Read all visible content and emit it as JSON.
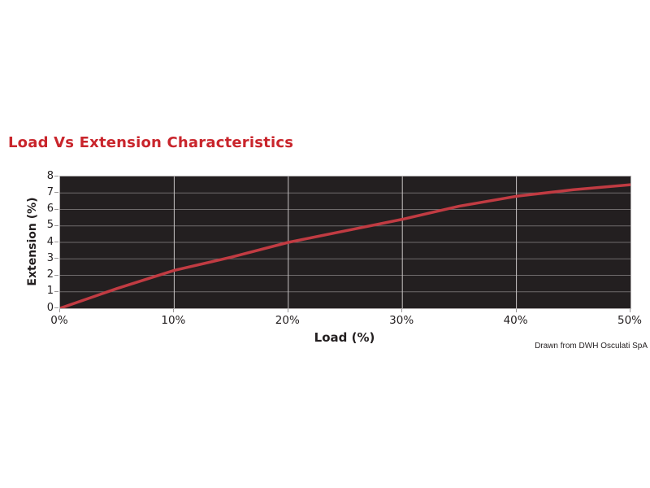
{
  "chart": {
    "title_color": "#c9252c",
    "page_background": "#ffffff"
  },
  "chart_data": {
    "type": "line",
    "title": "Load Vs Extension Characteristics",
    "xlabel": "Load (%)",
    "ylabel": "Extension (%)",
    "x": [
      0,
      5,
      10,
      15,
      20,
      25,
      30,
      35,
      40,
      45,
      50
    ],
    "y": [
      0,
      1.2,
      2.3,
      3.1,
      4.0,
      4.7,
      5.4,
      6.2,
      6.8,
      7.2,
      7.5
    ],
    "xlim": [
      0,
      50
    ],
    "ylim": [
      0,
      8
    ],
    "x_tick_values": [
      0,
      10,
      20,
      30,
      40,
      50
    ],
    "x_tick_labels": [
      "0%",
      "10%",
      "20%",
      "30%",
      "40%",
      "50%"
    ],
    "y_tick_values": [
      0,
      1,
      2,
      3,
      4,
      5,
      6,
      7,
      8
    ],
    "y_tick_labels": [
      "0",
      "1",
      "2",
      "3",
      "4",
      "5",
      "6",
      "7",
      "8"
    ],
    "grid": true,
    "legend_position": "none",
    "line_color": "#c13b42",
    "line_width": 3.5,
    "plot_background": "#231f20",
    "gridline_color_horizontal": "#6f6b6c",
    "gridline_color_vertical": "#c7c4c4",
    "footnote": "Drawn from DWH Osculati SpA"
  }
}
